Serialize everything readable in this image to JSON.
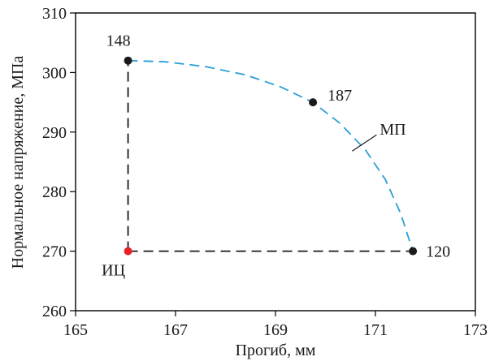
{
  "chart_data": {
    "type": "scatter",
    "xlabel": "Прогиб, мм",
    "ylabel": "Нормальное напряжение, МПа",
    "xlim": [
      165,
      173
    ],
    "ylim": [
      260,
      310
    ],
    "xticks": [
      "165",
      "167",
      "169",
      "171",
      "173"
    ],
    "yticks": [
      "260",
      "270",
      "280",
      "290",
      "300",
      "310"
    ],
    "points": [
      {
        "label": "148",
        "x": 166.05,
        "y": 302,
        "color": "#1a1a1a"
      },
      {
        "label": "187",
        "x": 169.75,
        "y": 295,
        "color": "#1a1a1a"
      },
      {
        "label": "120",
        "x": 171.75,
        "y": 270,
        "color": "#1a1a1a"
      },
      {
        "label": "ИЦ",
        "x": 166.05,
        "y": 270,
        "color": "#e8202a"
      }
    ],
    "pareto_curve": {
      "name": "МП",
      "color": "#2a9fd6",
      "x": [
        166.05,
        166.8,
        167.6,
        168.4,
        169.1,
        169.75,
        170.3,
        170.8,
        171.2,
        171.5,
        171.75
      ],
      "y": [
        302,
        301.8,
        301.0,
        299.6,
        297.6,
        295,
        291.4,
        287.0,
        282.0,
        276.4,
        270
      ]
    },
    "reference_lines": {
      "color": "#1a1a1a",
      "vertical": {
        "x": 166.05,
        "y": [
          270,
          302
        ]
      },
      "horizontal": {
        "y": 270,
        "x": [
          166.05,
          171.75
        ]
      }
    }
  }
}
